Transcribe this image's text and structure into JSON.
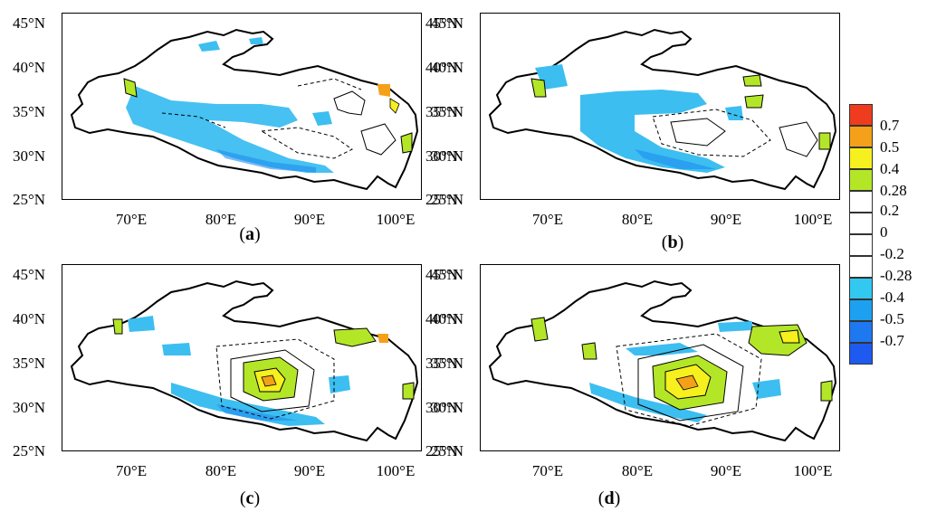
{
  "panels": [
    {
      "id": "a",
      "label_open": "(",
      "label_letter": "a",
      "label_close": ")"
    },
    {
      "id": "b",
      "label_open": "(",
      "label_letter": "b",
      "label_close": ")"
    },
    {
      "id": "c",
      "label_open": "(",
      "label_letter": "c",
      "label_close": ")"
    },
    {
      "id": "d",
      "label_open": "(",
      "label_letter": "d",
      "label_close": ")"
    }
  ],
  "y_ticks": [
    "45°N",
    "40°N",
    "35°N",
    "30°N",
    "25°N"
  ],
  "x_ticks": [
    "70°E",
    "80°E",
    "90°E",
    "100°E"
  ],
  "legend": {
    "labels": [
      "0.7",
      "0.5",
      "0.4",
      "0.28",
      "0.2",
      "0",
      "-0.2",
      "-0.28",
      "-0.4",
      "-0.5",
      "-0.7"
    ],
    "colors": [
      "#f03c1e",
      "#f5a019",
      "#f5f01e",
      "#b4e628",
      "#ffffff",
      "#ffffff",
      "#ffffff",
      "#ffffff",
      "#32c8f0",
      "#1ea0f0",
      "#1e78f0",
      "#1e5af0"
    ]
  },
  "colors": {
    "neg_light": "#3cbef0",
    "neg_mid": "#1ea0f0",
    "pos_green": "#b4e628",
    "pos_yellow": "#f5f01e",
    "pos_orange": "#f5a019",
    "pos_red": "#f03c1e"
  }
}
